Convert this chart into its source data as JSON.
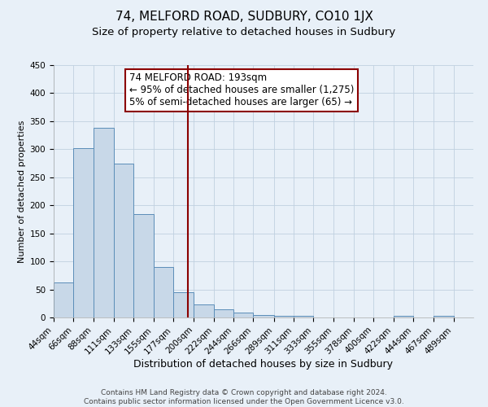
{
  "title": "74, MELFORD ROAD, SUDBURY, CO10 1JX",
  "subtitle": "Size of property relative to detached houses in Sudbury",
  "xlabel": "Distribution of detached houses by size in Sudbury",
  "ylabel": "Number of detached properties",
  "bar_left_edges": [
    44,
    66,
    88,
    111,
    133,
    155,
    177,
    200,
    222,
    244,
    266,
    289,
    311,
    333,
    355,
    378,
    400,
    422,
    444,
    467
  ],
  "bar_heights": [
    62,
    302,
    338,
    275,
    184,
    90,
    45,
    23,
    15,
    8,
    4,
    3,
    3,
    0,
    0,
    0,
    0,
    3,
    0,
    3
  ],
  "bar_widths": [
    22,
    22,
    23,
    22,
    22,
    22,
    23,
    22,
    22,
    22,
    23,
    22,
    22,
    22,
    23,
    22,
    22,
    22,
    23,
    22
  ],
  "bar_color": "#c8d8e8",
  "bar_edgecolor": "#5b8db8",
  "vline_x": 193,
  "vline_color": "#8b0000",
  "ylim": [
    0,
    450
  ],
  "yticks": [
    0,
    50,
    100,
    150,
    200,
    250,
    300,
    350,
    400,
    450
  ],
  "xtick_labels": [
    "44sqm",
    "66sqm",
    "88sqm",
    "111sqm",
    "133sqm",
    "155sqm",
    "177sqm",
    "200sqm",
    "222sqm",
    "244sqm",
    "266sqm",
    "289sqm",
    "311sqm",
    "333sqm",
    "355sqm",
    "378sqm",
    "400sqm",
    "422sqm",
    "444sqm",
    "467sqm",
    "489sqm"
  ],
  "xtick_positions": [
    44,
    66,
    88,
    111,
    133,
    155,
    177,
    200,
    222,
    244,
    266,
    289,
    311,
    333,
    355,
    378,
    400,
    422,
    444,
    467,
    489
  ],
  "annotation_title": "74 MELFORD ROAD: 193sqm",
  "annotation_line1": "← 95% of detached houses are smaller (1,275)",
  "annotation_line2": "5% of semi-detached houses are larger (65) →",
  "annotation_box_color": "#ffffff",
  "annotation_box_edgecolor": "#8b0000",
  "grid_color": "#c0d0e0",
  "bg_color": "#e8f0f8",
  "footer_line1": "Contains HM Land Registry data © Crown copyright and database right 2024.",
  "footer_line2": "Contains public sector information licensed under the Open Government Licence v3.0.",
  "title_fontsize": 11,
  "subtitle_fontsize": 9.5,
  "xlabel_fontsize": 9,
  "ylabel_fontsize": 8,
  "tick_fontsize": 7.5,
  "annotation_fontsize": 8.5,
  "footer_fontsize": 6.5
}
